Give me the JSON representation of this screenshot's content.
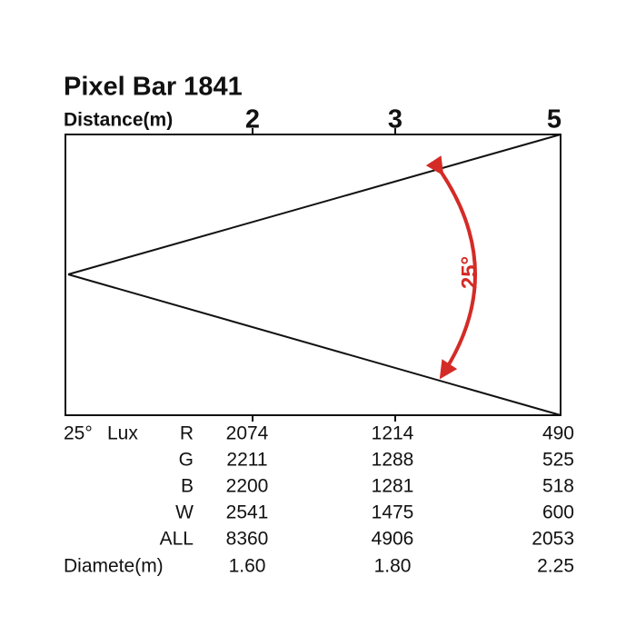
{
  "title": "Pixel Bar 1841",
  "distance_label": "Distance(m)",
  "distances": [
    "2",
    "3",
    "5"
  ],
  "beam_angle": "25°",
  "angle_label": "25°",
  "lux_label": "Lux",
  "rows": [
    {
      "label": "R",
      "values": [
        "2074",
        "1214",
        "490"
      ]
    },
    {
      "label": "G",
      "values": [
        "2211",
        "1288",
        "525"
      ]
    },
    {
      "label": "B",
      "values": [
        "2200",
        "1281",
        "518"
      ]
    },
    {
      "label": "W",
      "values": [
        "2541",
        "1475",
        "600"
      ]
    },
    {
      "label": "ALL",
      "values": [
        "8360",
        "4906",
        "2053"
      ]
    }
  ],
  "diameter_label": "Diamete(m)",
  "diameters": [
    "1.60",
    "1.80",
    "2.25"
  ]
}
